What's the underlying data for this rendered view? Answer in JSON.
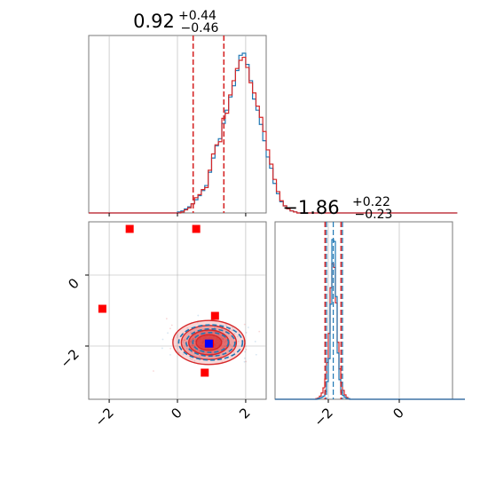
{
  "chart_data": {
    "type": "corner",
    "colors": {
      "posterior_a": "#1f77b4",
      "posterior_b": "#d62728",
      "marker_red": "#ff0000",
      "marker_blue": "#0000ff",
      "grid": "#b0b0b0"
    },
    "parameters": [
      {
        "range": [
          -2.6,
          2.6
        ],
        "ticks": [
          -2,
          0,
          2
        ],
        "tick_labels": [
          "−2",
          "0",
          "2"
        ]
      },
      {
        "range": [
          -3.5,
          1.5
        ],
        "ticks": [
          -2,
          0
        ],
        "tick_labels": [
          "−2",
          "0"
        ]
      }
    ],
    "marginals": [
      {
        "title": {
          "median": "0.92",
          "plus": "+0.44",
          "minus": "−0.46"
        },
        "quantiles": [
          0.46,
          1.36
        ],
        "bin_start": -2.6,
        "bin_width": 0.1,
        "blue_counts": [
          0,
          0,
          0,
          0,
          0,
          0,
          0,
          0,
          0,
          0,
          0,
          0,
          0,
          0,
          0,
          0,
          0,
          0,
          0,
          0,
          0,
          0,
          0,
          0,
          0,
          0,
          1,
          2,
          4,
          6,
          9,
          13,
          17,
          22,
          27,
          40,
          54,
          66,
          73,
          88,
          101,
          114,
          125,
          140,
          155,
          157,
          146,
          130,
          112,
          101,
          87,
          71,
          55,
          44,
          29,
          19,
          11,
          7,
          4,
          2,
          1,
          0,
          0,
          0,
          0,
          0,
          0,
          0,
          0,
          0,
          0,
          0,
          0,
          0,
          0,
          0,
          0,
          0,
          0,
          0,
          0,
          0,
          0,
          0,
          0,
          0,
          0,
          0,
          0,
          0,
          0,
          0,
          0,
          0,
          0,
          0,
          0,
          0,
          0,
          0,
          0,
          0,
          0,
          0,
          0,
          0,
          0,
          0
        ],
        "red_counts": [
          0,
          0,
          0,
          0,
          0,
          0,
          0,
          0,
          0,
          0,
          0,
          0,
          0,
          0,
          0,
          0,
          0,
          0,
          0,
          0,
          0,
          0,
          0,
          0,
          0,
          0,
          0,
          1,
          3,
          5,
          9,
          15,
          18,
          23,
          25,
          42,
          58,
          67,
          70,
          93,
          98,
          116,
          130,
          142,
          150,
          153,
          143,
          128,
          118,
          105,
          94,
          80,
          62,
          48,
          33,
          21,
          12,
          7,
          4,
          2,
          1,
          0,
          0,
          0,
          0,
          0,
          0,
          0,
          0,
          0,
          0,
          0,
          0,
          0,
          0,
          0,
          0,
          0,
          0,
          0,
          0,
          0,
          0,
          0,
          0,
          0,
          0,
          0,
          0,
          0,
          0,
          0,
          0,
          0,
          0,
          0,
          0,
          0,
          0,
          0,
          0,
          0,
          0,
          0,
          0,
          0,
          0,
          0
        ]
      },
      {
        "title": {
          "median": "−1.86",
          "plus": "+0.22",
          "minus": "−0.23"
        },
        "quantiles": [
          -2.09,
          -1.64
        ],
        "bin_start": -3.5,
        "bin_width": 0.05,
        "blue_counts": [
          0,
          0,
          0,
          0,
          0,
          0,
          0,
          0,
          0,
          0,
          0,
          0,
          0,
          0,
          0,
          0,
          0,
          0,
          0,
          0,
          0,
          0,
          0,
          0,
          1,
          2,
          3,
          5,
          12,
          28,
          64,
          150,
          252,
          249,
          162,
          73,
          31,
          11,
          6,
          3,
          1,
          1,
          0,
          0,
          0,
          0,
          0,
          0,
          0,
          0,
          0,
          0,
          0,
          0,
          0,
          0,
          0,
          0,
          0,
          0,
          0,
          0,
          0,
          0,
          0,
          0,
          0,
          0,
          0,
          0,
          0,
          0,
          0,
          0,
          0,
          0,
          0,
          0,
          0,
          0,
          0,
          0,
          0,
          0,
          0,
          0,
          0,
          0,
          0,
          0,
          0,
          0,
          0,
          0,
          0,
          0,
          0,
          0,
          0,
          0,
          0,
          0,
          0,
          0,
          0,
          0,
          0
        ],
        "red_counts": [
          0,
          0,
          0,
          0,
          0,
          0,
          0,
          0,
          0,
          0,
          0,
          0,
          0,
          0,
          0,
          0,
          0,
          0,
          0,
          0,
          0,
          0,
          0,
          1,
          2,
          5,
          10,
          18,
          32,
          58,
          104,
          176,
          214,
          208,
          152,
          90,
          48,
          26,
          14,
          7,
          3,
          1,
          0,
          0,
          0,
          0,
          0,
          0,
          0,
          0,
          0,
          0,
          0,
          0,
          0,
          0,
          0,
          0,
          0,
          0,
          0,
          0,
          0,
          0,
          0,
          0,
          0,
          0,
          0,
          0,
          0,
          0,
          0,
          0,
          0,
          0,
          0,
          0,
          0,
          0,
          0,
          0,
          0,
          0,
          0,
          0,
          0,
          0,
          0,
          0,
          0,
          0,
          0,
          0,
          0,
          0,
          0,
          0,
          0,
          0,
          0,
          0,
          0,
          0,
          0,
          0,
          0
        ]
      }
    ],
    "joint": {
      "center": [
        0.92,
        -1.9
      ],
      "red_markers": [
        {
          "x": -2.2,
          "y": -0.95
        },
        {
          "x": -1.4,
          "y": 1.3
        },
        {
          "x": 0.55,
          "y": 1.3
        },
        {
          "x": 1.1,
          "y": -1.15
        },
        {
          "x": 0.8,
          "y": -2.75
        },
        {
          "x": 0.95,
          "y": -1.93
        }
      ],
      "blue_marker": {
        "x": 0.92,
        "y": -1.93
      },
      "contour_levels": [
        {
          "rx": 1.7,
          "ry": 0.62
        },
        {
          "rx": 1.3,
          "ry": 0.48
        },
        {
          "rx": 0.95,
          "ry": 0.35
        },
        {
          "rx": 0.6,
          "ry": 0.22
        }
      ]
    }
  }
}
